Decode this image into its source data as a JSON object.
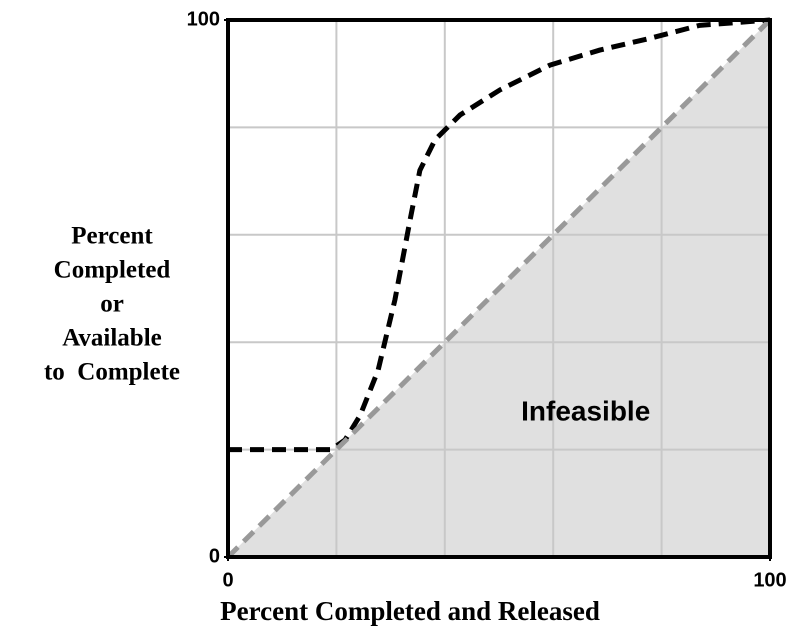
{
  "chart_data": {
    "type": "line",
    "xlabel": "Percent Completed and Released",
    "ylabel": [
      "Percent",
      "Completed",
      "or",
      "Available",
      "to  Complete"
    ],
    "annotation": {
      "text": "Infeasible",
      "x": 66,
      "y": 26.8
    },
    "xlim": [
      0,
      100
    ],
    "ylim": [
      0,
      100
    ],
    "xticks": [
      0,
      100
    ],
    "yticks": [
      0,
      100
    ],
    "xgrid": [
      20,
      40,
      60,
      80
    ],
    "ygrid": [
      20,
      40,
      60,
      80
    ],
    "series": [
      {
        "color": "#000000",
        "dashed": true,
        "x": [
          0,
          19,
          21.6,
          24.4,
          27.7,
          30.8,
          33.6,
          35.4,
          38.2,
          42.8,
          50.2,
          59.4,
          68.6,
          77.9,
          87,
          100
        ],
        "values": [
          20,
          20,
          21.8,
          26.4,
          34.8,
          47.9,
          62.8,
          72,
          77.7,
          82.3,
          87,
          91.6,
          94.4,
          96.6,
          99,
          100
        ]
      },
      {
        "color": "#999999",
        "dashed": true,
        "fill_below": "#e0e0e0",
        "x": [
          0,
          100
        ],
        "values": [
          0,
          100
        ]
      }
    ]
  }
}
